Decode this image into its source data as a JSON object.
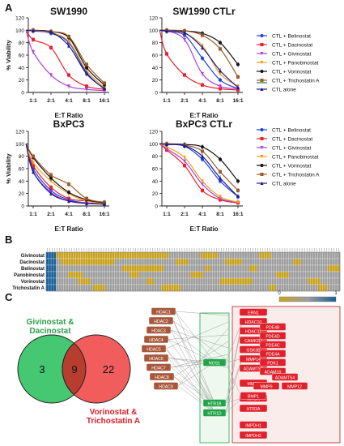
{
  "panel_labels": {
    "a": "A",
    "b": "B",
    "c": "C"
  },
  "chart_data": [
    {
      "type": "line",
      "title": "SW1990",
      "xlabel": "E:T Ratio",
      "ylabel": "% Viability",
      "categories": [
        "1:1",
        "2:1",
        "4:1",
        "8:1",
        "16:1"
      ],
      "ylim": [
        0,
        120
      ],
      "yticks": [
        0,
        20,
        40,
        60,
        80,
        100,
        120
      ],
      "grid": false,
      "series": [
        {
          "name": "CTL + Belinostat",
          "values": [
            99,
            95,
            80,
            32,
            5
          ]
        },
        {
          "name": "CTL + Dacinostat",
          "values": [
            85,
            72,
            28,
            10,
            5
          ]
        },
        {
          "name": "CTL + Givinostat",
          "values": [
            65,
            28,
            10,
            5,
            3
          ]
        },
        {
          "name": "CTL + Panobinostat",
          "values": [
            99,
            96,
            82,
            35,
            8
          ]
        },
        {
          "name": "CTL + Vorinostat",
          "values": [
            100,
            98,
            88,
            40,
            12
          ]
        },
        {
          "name": "CTL + Trichostatin A",
          "values": [
            100,
            98,
            90,
            45,
            15
          ]
        },
        {
          "name": "CTL alone",
          "values": [
            99,
            97,
            75,
            30,
            6
          ]
        }
      ]
    },
    {
      "type": "line",
      "title": "SW1990 CTLr",
      "xlabel": "E:T Ratio",
      "ylabel": "",
      "categories": [
        "1:1",
        "2:1",
        "4:1",
        "8:1",
        "16:1"
      ],
      "ylim": [
        0,
        120
      ],
      "yticks": [
        0,
        20,
        40,
        60,
        80,
        100,
        120
      ],
      "grid": false,
      "series": [
        {
          "name": "CTL + Belinostat",
          "values": [
            98,
            92,
            55,
            20,
            6
          ]
        },
        {
          "name": "CTL + Dacinostat",
          "values": [
            62,
            28,
            12,
            6,
            4
          ]
        },
        {
          "name": "CTL + Givinostat",
          "values": [
            99,
            85,
            30,
            10,
            6
          ]
        },
        {
          "name": "CTL + Panobinostat",
          "values": [
            100,
            95,
            75,
            30,
            10
          ]
        },
        {
          "name": "CTL + Vorinostat",
          "values": [
            100,
            99,
            95,
            80,
            45
          ]
        },
        {
          "name": "CTL + Trichostatin A",
          "values": [
            100,
            99,
            92,
            70,
            25
          ]
        },
        {
          "name": "CTL alone",
          "values": [
            99,
            96,
            72,
            35,
            8
          ]
        }
      ]
    },
    {
      "type": "line",
      "title": "BxPC3",
      "xlabel": "E:T Ratio",
      "ylabel": "% Viability",
      "categories": [
        "1:1",
        "2:1",
        "4:1",
        "8:1",
        "16:1"
      ],
      "ylim": [
        0,
        120
      ],
      "yticks": [
        0,
        20,
        40,
        60,
        80,
        100,
        120
      ],
      "grid": false,
      "series": [
        {
          "name": "CTL + Belinostat",
          "values": [
            60,
            25,
            10,
            5,
            3
          ]
        },
        {
          "name": "CTL + Dacinostat",
          "values": [
            65,
            30,
            12,
            8,
            4
          ]
        },
        {
          "name": "CTL + Givinostat",
          "values": [
            55,
            22,
            8,
            5,
            3
          ]
        },
        {
          "name": "CTL + Panobinostat",
          "values": [
            70,
            40,
            20,
            8,
            4
          ]
        },
        {
          "name": "CTL + Vorinostat",
          "values": [
            78,
            45,
            22,
            10,
            5
          ]
        },
        {
          "name": "CTL + Trichostatin A",
          "values": [
            80,
            50,
            35,
            12,
            6
          ]
        },
        {
          "name": "CTL alone",
          "values": [
            55,
            20,
            8,
            4,
            3
          ]
        }
      ]
    },
    {
      "type": "line",
      "title": "BxPC3 CTLr",
      "xlabel": "E:T Ratio",
      "ylabel": "",
      "categories": [
        "1:1",
        "2:1",
        "4:1",
        "8:1",
        "16:1"
      ],
      "ylim": [
        0,
        120
      ],
      "yticks": [
        0,
        20,
        40,
        60,
        80,
        100,
        120
      ],
      "grid": false,
      "series": [
        {
          "name": "CTL + Belinostat",
          "values": [
            99,
            96,
            75,
            40,
            15
          ]
        },
        {
          "name": "CTL + Dacinostat",
          "values": [
            90,
            65,
            25,
            10,
            5
          ]
        },
        {
          "name": "CTL + Givinostat",
          "values": [
            92,
            72,
            35,
            12,
            6
          ]
        },
        {
          "name": "CTL + Panobinostat",
          "values": [
            95,
            78,
            40,
            15,
            6
          ]
        },
        {
          "name": "CTL + Vorinostat",
          "values": [
            100,
            99,
            95,
            75,
            40
          ]
        },
        {
          "name": "CTL + Trichostatin A",
          "values": [
            100,
            98,
            88,
            55,
            25
          ]
        },
        {
          "name": "CTL alone",
          "values": [
            99,
            97,
            80,
            45,
            15
          ]
        }
      ]
    },
    {
      "type": "heatmap",
      "rows": [
        "Givinostat",
        "Dacinostat",
        "Belinostat",
        "Panobinostat",
        "Vorinostat",
        "Trichostatin A"
      ],
      "scale_min": "0",
      "scale_max": "1",
      "colors": {
        "low": "#c8a21e",
        "mid": "#9e9e9e",
        "high": "#17609a"
      },
      "ncols": 120
    }
  ],
  "legend": {
    "items": [
      {
        "label": "CTL + Belinostat",
        "color": "#1f3fe0",
        "marker": "circle"
      },
      {
        "label": "CTL + Dacinostat",
        "color": "#e8202a",
        "marker": "square"
      },
      {
        "label": "CTL + Givinostat",
        "color": "#b040d8",
        "marker": "tri-down"
      },
      {
        "label": "CTL + Panobinostat",
        "color": "#f0a020",
        "marker": "tri-down"
      },
      {
        "label": "CTL + Vorinostat",
        "color": "#111111",
        "marker": "circle"
      },
      {
        "label": "CTL + Trichostatin A",
        "color": "#9c5a28",
        "marker": "square"
      },
      {
        "label": "CTL alone",
        "color": "#1a1a8c",
        "marker": "triangle"
      }
    ],
    "extra_line_color": "#2a7a3a"
  },
  "venn": {
    "left_label": "Givinostat &\nDacinostat",
    "right_label": "Vorinostat &\nTrichostatin A",
    "left_only": "3",
    "overlap": "9",
    "right_only": "22",
    "left_color": "#3cc46a",
    "right_color": "#f04a4a"
  },
  "network": {
    "left": [
      "HDAC1",
      "HDAC2",
      "HDAC3",
      "HDAC4",
      "HDAC5",
      "HDAC6",
      "HDAC7",
      "HDAC8",
      "HDAC9"
    ],
    "middle": [
      "NOS1",
      "HTR1B",
      "HTR1D"
    ],
    "right_single": [
      "ERN1",
      "HDAC10",
      "HDAC11",
      "CAMK2D",
      "GSK3B",
      "MMP14",
      "ADAMTS5",
      "MMP2",
      "MAOA",
      "HTR3A",
      "IMPDH1",
      "IMPDH2"
    ],
    "right_col2": [
      "PDE4B",
      "PDE4D",
      "PDE4C",
      "PDE4A",
      "PDK1",
      "ADAM10",
      "ADAMTS4",
      "MMP9",
      "MMP12",
      "BMP1"
    ],
    "colors": {
      "left_node": "#a8583a",
      "middle_node": "#21a34a",
      "right_node": "#e0202a"
    }
  }
}
